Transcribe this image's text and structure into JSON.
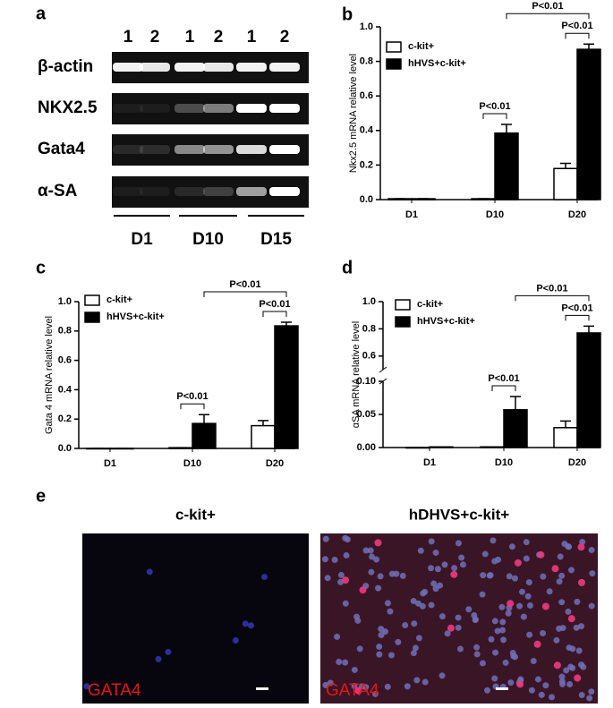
{
  "panel_labels": [
    "a",
    "b",
    "c",
    "d",
    "e"
  ],
  "gel": {
    "lanes": [
      "1",
      "2",
      "1",
      "2",
      "1",
      "2"
    ],
    "rows": [
      "β-actin",
      "NKX2.5",
      "Gata4",
      "α-SA"
    ],
    "groups": [
      "D1",
      "D10",
      "D15"
    ]
  },
  "chart_data": [
    {
      "type": "bar",
      "ylabel": "Nkx2.5 mRNA  relative level",
      "categories": [
        "D1",
        "D10",
        "D20"
      ],
      "series": [
        {
          "name": "c-kit+",
          "color": "#ffffff",
          "values": [
            0.005,
            0.005,
            0.18
          ],
          "errors": [
            0,
            0,
            0.03
          ]
        },
        {
          "name": "hHVS+c-kit+",
          "color": "#000000",
          "values": [
            0.005,
            0.385,
            0.87
          ],
          "errors": [
            0,
            0.05,
            0.03
          ]
        }
      ],
      "ylim": [
        0,
        1
      ],
      "yticks": [
        {
          "value": 0,
          "label": "0.0"
        },
        0.2,
        0.4,
        0.6,
        0.8,
        {
          "value": 1,
          "label": "1.0"
        }
      ],
      "annotations": [
        "P<0.01",
        "P<0.01",
        "P<0.01"
      ]
    },
    {
      "type": "bar",
      "ylabel": "Gata 4 mRNA relative level",
      "categories": [
        "D1",
        "D10",
        "D20"
      ],
      "series": [
        {
          "name": "c-kit+",
          "color": "#ffffff",
          "values": [
            0,
            0.005,
            0.155
          ],
          "errors": [
            0,
            0,
            0.035
          ]
        },
        {
          "name": "hHVS+c-kit+",
          "color": "#000000",
          "values": [
            0,
            0.17,
            0.835
          ],
          "errors": [
            0,
            0.06,
            0.025
          ]
        }
      ],
      "ylim": [
        0,
        1
      ],
      "yticks": [
        {
          "value": 0,
          "label": "0.0"
        },
        0.2,
        0.4,
        0.6,
        0.8,
        {
          "value": 1,
          "label": "1.0"
        }
      ],
      "annotations": [
        "P<0.01",
        "P<0.01",
        "P<0.01"
      ]
    },
    {
      "type": "bar",
      "ylabel": "αSA mRNA relative level",
      "categories": [
        "D1",
        "D10",
        "D20"
      ],
      "series": [
        {
          "name": "c-kit+",
          "color": "#ffffff",
          "values": [
            0,
            0.001,
            0.03
          ],
          "errors": [
            0,
            0,
            0.01
          ]
        },
        {
          "name": "hHVS+c-kit+",
          "color": "#000000",
          "values": [
            0.001,
            0.057,
            0.77
          ],
          "errors": [
            0,
            0.02,
            0.05
          ]
        }
      ],
      "axis_segments": [
        {
          "ylim": [
            0,
            0.1
          ],
          "yticks": [
            {
              "value": 0,
              "label": "0.00"
            },
            0.05,
            {
              "value": 0.1,
              "label": "0.10"
            }
          ]
        },
        {
          "ylim": [
            0.5,
            1
          ],
          "yticks": [
            0.6,
            0.8,
            {
              "value": 1,
              "label": "1.0"
            }
          ]
        }
      ],
      "annotations": [
        "P<0.01",
        "P<0.01",
        "P<0.01"
      ]
    }
  ],
  "micrographs": [
    {
      "title": "c-kit+",
      "stain": "GATA4"
    },
    {
      "title": "hDHVS+c-kit+",
      "stain": "GATA4"
    }
  ]
}
